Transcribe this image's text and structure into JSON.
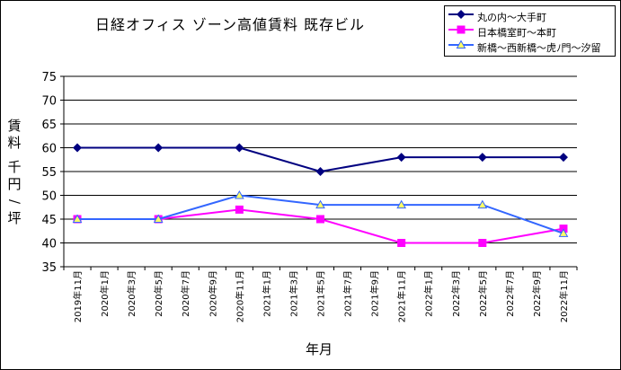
{
  "chart_data": {
    "type": "line",
    "title": "日経オフィス ゾーン高値賃料 既存ビル",
    "xlabel": "年月",
    "ylabel_parts": [
      "賃料",
      "千円/坪"
    ],
    "ylim": [
      35,
      75
    ],
    "yticks": [
      35,
      40,
      45,
      50,
      55,
      60,
      65,
      70,
      75
    ],
    "grid": true,
    "legend_position": "top-right",
    "x": [
      "2019年11月",
      "2020年1月",
      "2020年3月",
      "2020年5月",
      "2020年7月",
      "2020年9月",
      "2020年11月",
      "2021年1月",
      "2021年3月",
      "2021年5月",
      "2021年7月",
      "2021年9月",
      "2021年11月",
      "2022年1月",
      "2022年3月",
      "2022年5月",
      "2022年7月",
      "2022年9月",
      "2022年11月"
    ],
    "series": [
      {
        "name": "丸の内～大手町",
        "color": "#000080",
        "marker": "diamond",
        "points": [
          [
            0,
            60
          ],
          [
            3,
            60
          ],
          [
            6,
            60
          ],
          [
            9,
            55
          ],
          [
            12,
            58
          ],
          [
            15,
            58
          ],
          [
            18,
            58
          ]
        ]
      },
      {
        "name": "日本橋室町～本町",
        "color": "#ff00ff",
        "marker": "square",
        "points": [
          [
            0,
            45
          ],
          [
            3,
            45
          ],
          [
            6,
            47
          ],
          [
            9,
            45
          ],
          [
            12,
            40
          ],
          [
            15,
            40
          ],
          [
            18,
            43
          ]
        ]
      },
      {
        "name": "新橋～西新橋～虎ﾉ門～汐留",
        "color": "#3366ff",
        "marker": "triangle",
        "points": [
          [
            0,
            45
          ],
          [
            3,
            45
          ],
          [
            6,
            50
          ],
          [
            9,
            48
          ],
          [
            12,
            48
          ],
          [
            15,
            48
          ],
          [
            18,
            42
          ]
        ]
      }
    ]
  }
}
